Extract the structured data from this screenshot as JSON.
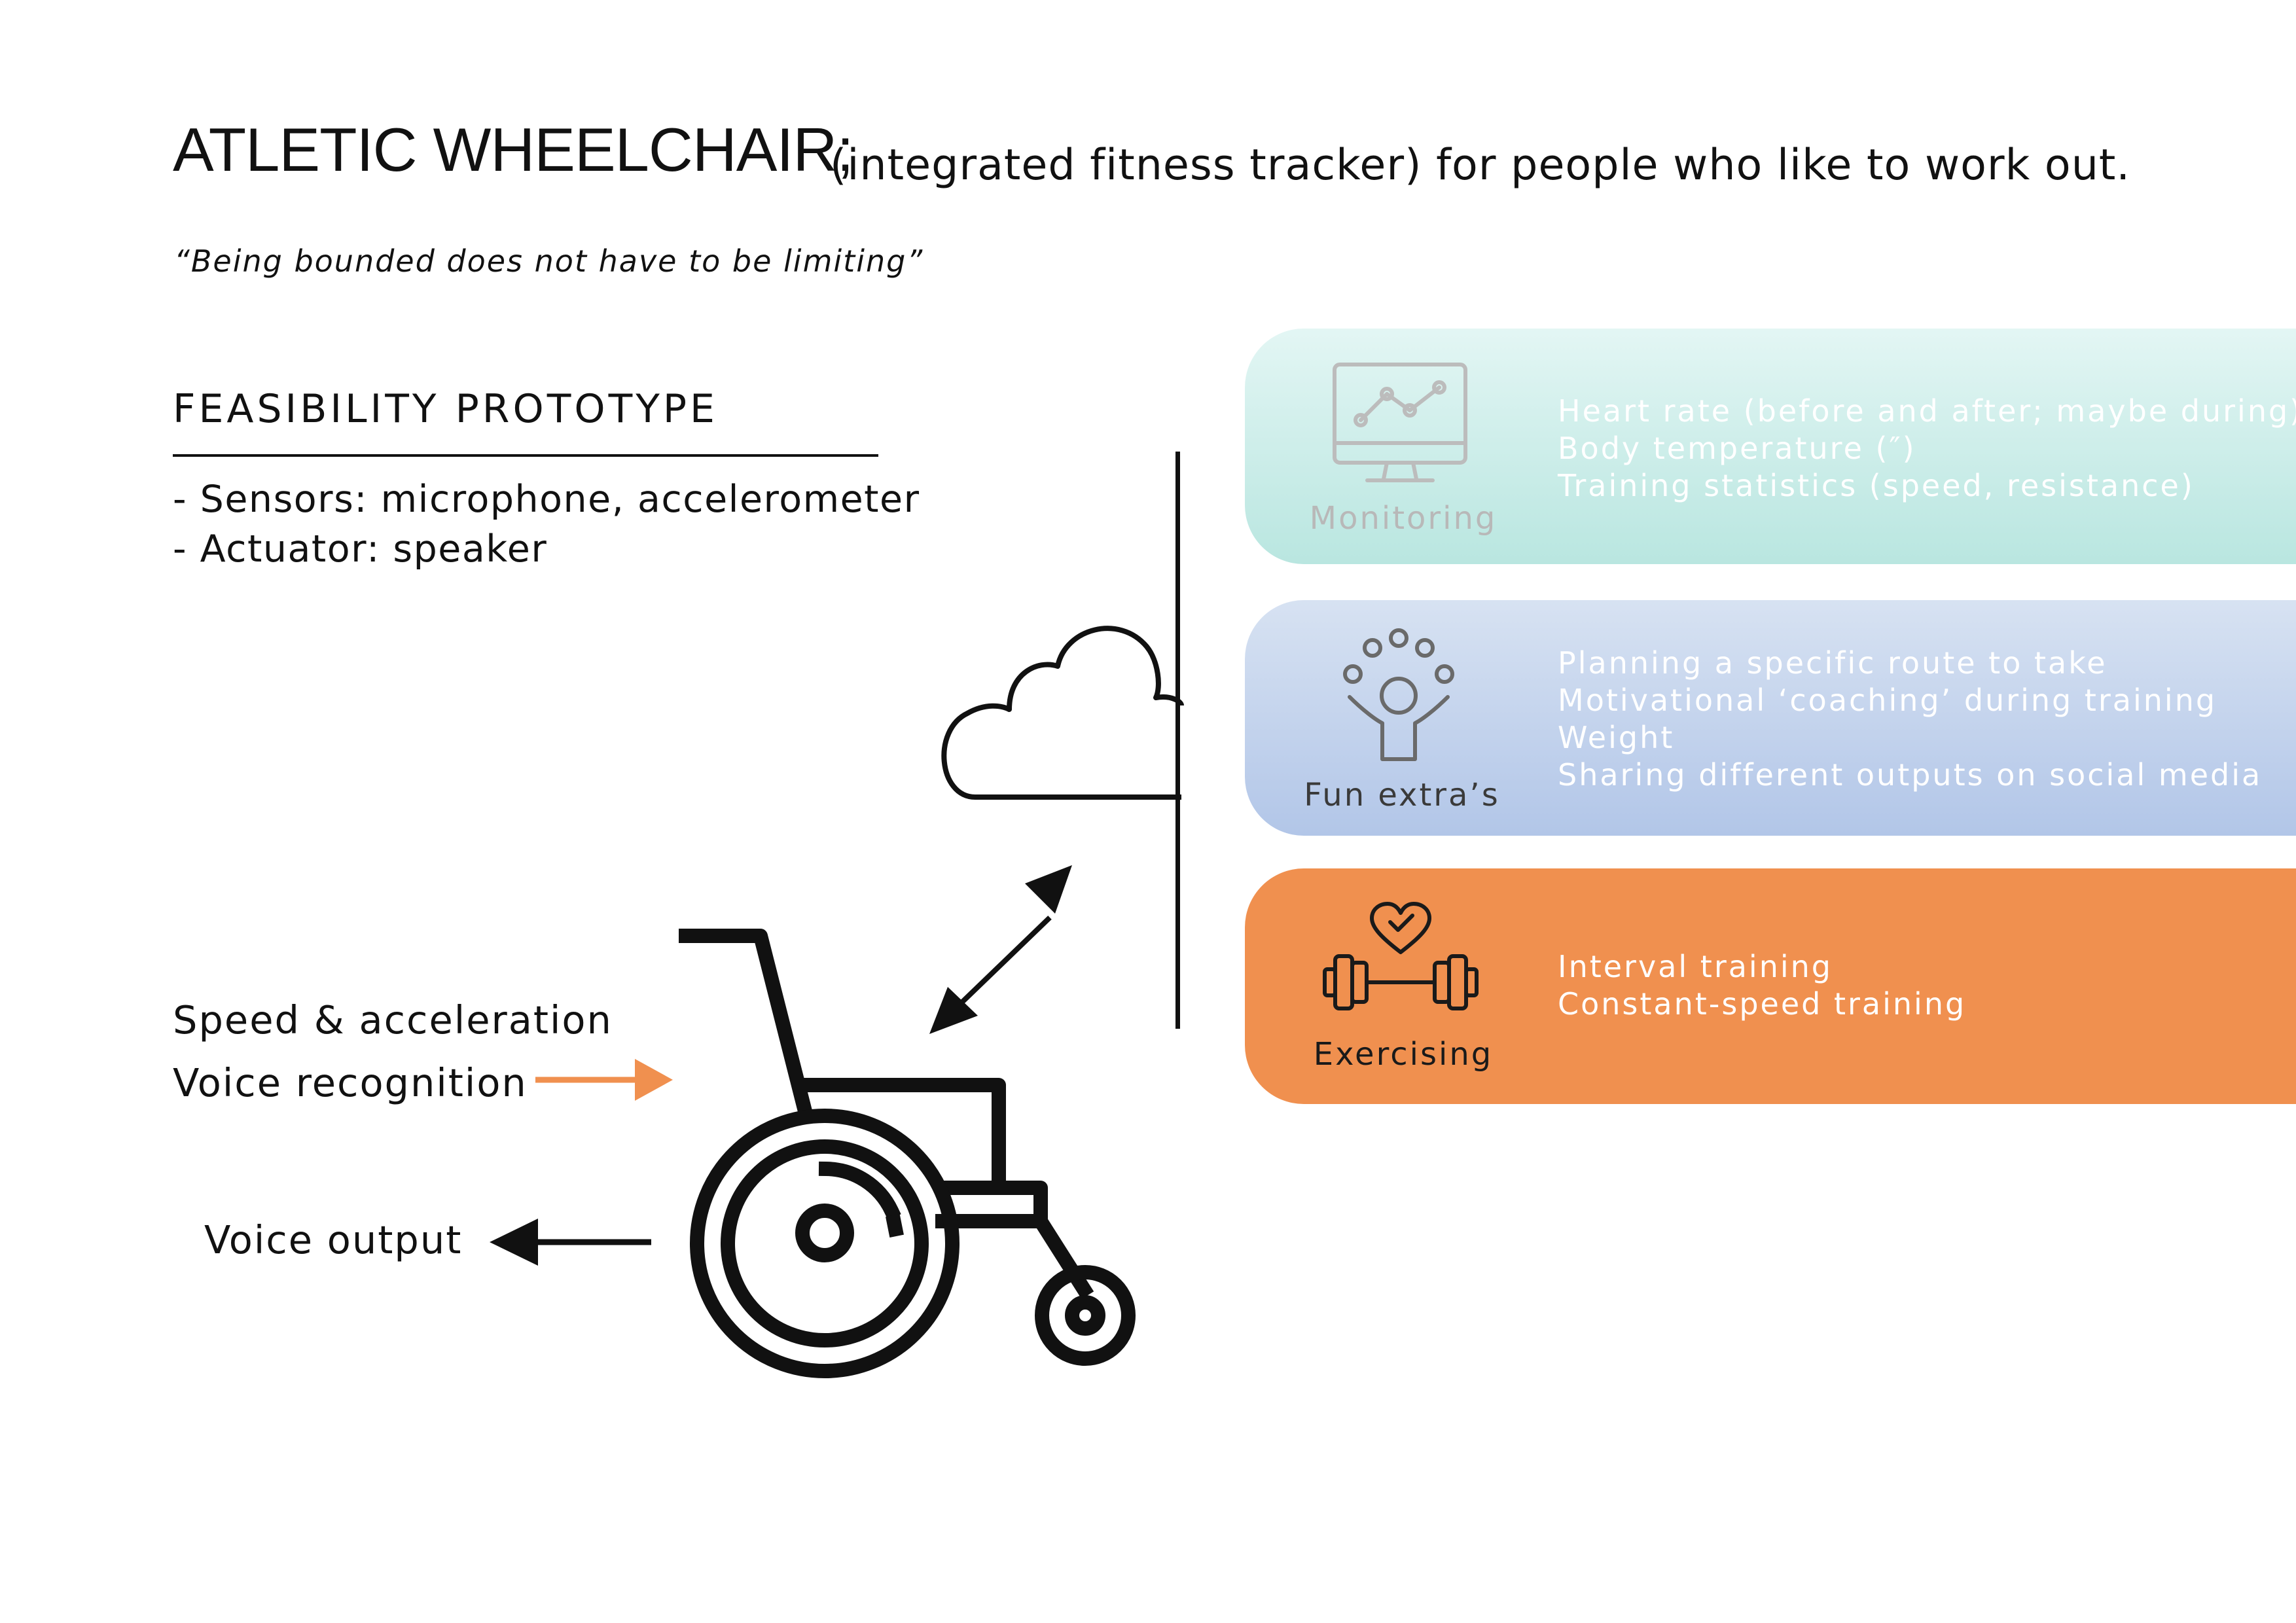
{
  "header": {
    "title": "ATLETIC WHEELCHAIR;",
    "subtitle": "(integrated fitness tracker) for people who like to work out.",
    "tagline": "“Being bounded does not have to be limiting”"
  },
  "prototype": {
    "heading": "FEASIBILITY PROTOTYPE",
    "lines": [
      "- Sensors: microphone, accelerometer",
      "- Actuator: speaker"
    ]
  },
  "io": {
    "inputs": [
      "Speed & acceleration",
      "Voice recognition"
    ],
    "output": "Voice output",
    "input_arrow_color": "#f0904f",
    "output_arrow_color": "#111111"
  },
  "panels": [
    {
      "label": "Monitoring",
      "icon": "monitor-chart-icon",
      "items": [
        "Heart rate (before and after; maybe during)",
        "Body temperature (″)",
        "Training statistics (speed, resistance)"
      ]
    },
    {
      "label": "Fun extra’s",
      "icon": "juggling-person-icon",
      "items": [
        "Planning a specific route to take",
        "Motivational ‘coaching’ during training",
        "Weight",
        "Sharing different outputs on social media"
      ]
    },
    {
      "label": "Exercising",
      "icon": "heart-dumbbell-icon",
      "items": [
        "Interval training",
        "Constant-speed training"
      ]
    }
  ]
}
